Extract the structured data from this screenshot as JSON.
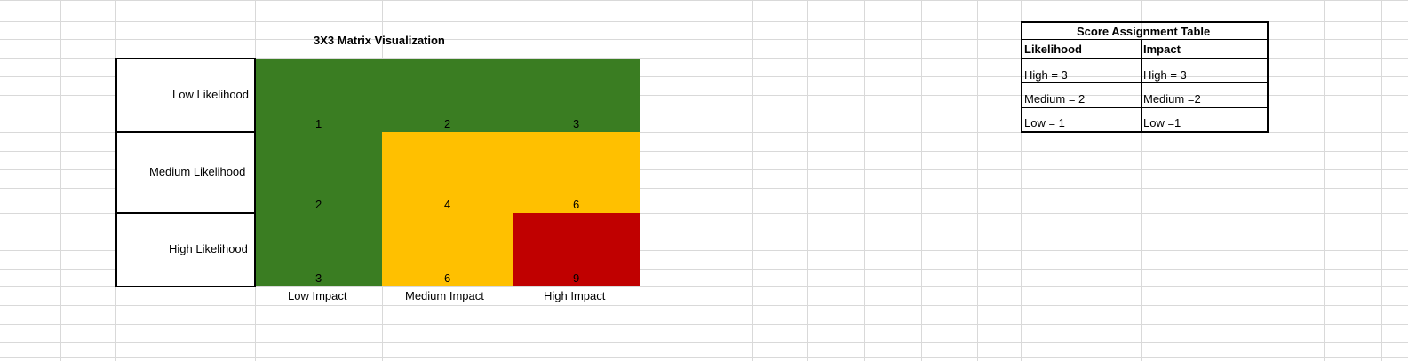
{
  "sheet": {
    "matrix": {
      "title": "3X3 Matrix Visualization",
      "row_labels": [
        "Low Likelihood",
        "Medium Likelihood",
        "High Likelihood"
      ],
      "col_labels": [
        "Low Impact",
        "Medium Impact",
        "High Impact"
      ],
      "scores": [
        [
          "1",
          "2",
          "3"
        ],
        [
          "2",
          "4",
          "6"
        ],
        [
          "3",
          "6",
          "9"
        ]
      ],
      "colors": {
        "green": "#3a7d22",
        "amber": "#ffc000",
        "red": "#c00000"
      }
    },
    "score_table": {
      "title": "Score Assignment Table",
      "headers": [
        "Likelihood",
        "Impact"
      ],
      "rows": [
        [
          "High = 3",
          "High = 3"
        ],
        [
          "Medium = 2",
          "Medium =2"
        ],
        [
          "Low = 1",
          "Low =1"
        ]
      ]
    }
  }
}
